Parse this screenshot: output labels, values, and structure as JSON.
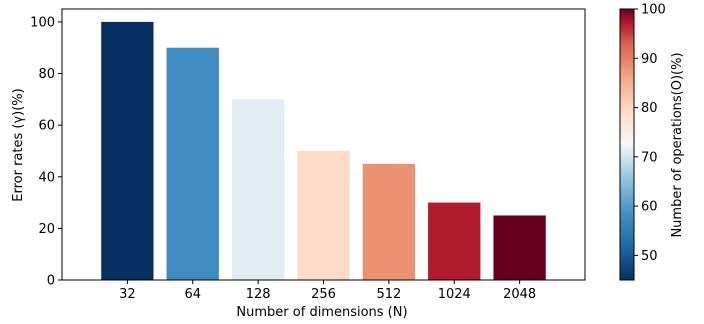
{
  "chart_data": {
    "type": "bar",
    "title": "",
    "xlabel": "Number of dimensions (N)",
    "ylabel": "Error rates (γ)(%)",
    "categories": [
      "32",
      "64",
      "128",
      "256",
      "512",
      "1024",
      "2048"
    ],
    "values": [
      100,
      90,
      70,
      50,
      45,
      30,
      25
    ],
    "ylim": [
      0,
      105
    ],
    "yticks": [
      0,
      20,
      40,
      60,
      80,
      100
    ],
    "grid": false,
    "colorbar": {
      "label": "Number of operations(O)(%)",
      "range": [
        45,
        100
      ],
      "ticks": [
        50,
        60,
        70,
        80,
        90,
        100
      ],
      "colormap": "RdBu_r"
    },
    "bar_colors": [
      "#053061",
      "#3d8bc1",
      "#e1edf3",
      "#fcdbc9",
      "#ec9271",
      "#b11a2c",
      "#67001f"
    ]
  }
}
